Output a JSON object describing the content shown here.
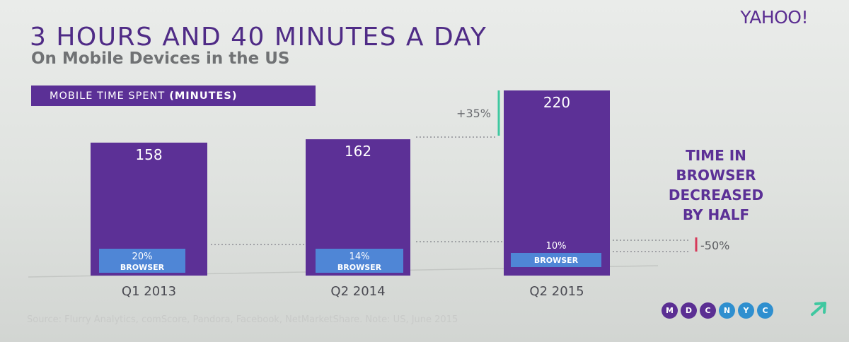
{
  "brand": "YAHOO!",
  "title": "3 HOURS AND 40 MINUTES A DAY",
  "subtitle": "On Mobile Devices in the US",
  "legend": {
    "label": "MOBILE TIME SPENT",
    "unit": "(MINUTES)"
  },
  "chart_data": {
    "type": "bar",
    "categories": [
      "Q1 2013",
      "Q2 2014",
      "Q2 2015"
    ],
    "values": [
      158,
      162,
      220
    ],
    "browser_share": [
      "20%",
      "14%",
      "10%"
    ],
    "browser_label": "BROWSER",
    "growth_annotation": "+35%",
    "browser_change_annotation": "-50%",
    "xlabel": "",
    "ylabel": "",
    "grid": false
  },
  "callout": [
    "TIME IN",
    "BROWSER",
    "DECREASED",
    "BY HALF"
  ],
  "badges": [
    "M",
    "D",
    "C",
    "N",
    "Y",
    "C"
  ],
  "badge_colors": [
    "#5b2f93",
    "#5b2f93",
    "#5b2f93",
    "#2f8fcf",
    "#2f8fcf",
    "#2f8fcf"
  ],
  "colors": {
    "bar": "#5c3096",
    "browser": "#4f86d6",
    "growth": "#3fc8a0",
    "decrease": "#d63a5a"
  },
  "source": "Source: Flurry Analytics, comScore, Pandora, Facebook, NetMarketShare. Note: US, June 2015"
}
